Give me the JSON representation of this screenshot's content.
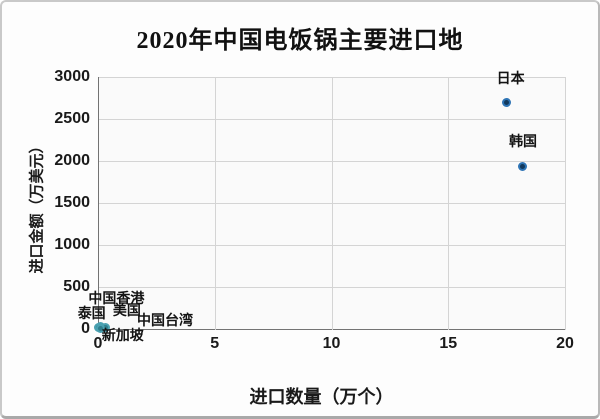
{
  "title": "2020年中国电饭锅主要进口地",
  "colors": {
    "page_bg": "#fdfdfd",
    "plot_bg": "#fafafa",
    "grid": "#d4d4d4",
    "axis": "#737373",
    "text": "#1a1a1a",
    "point_blue_fill": "#12395d",
    "point_blue_ring": "#2e74b5",
    "point_teal_fill": "#2e7d8c",
    "point_teal_ring": "#4aa0b0"
  },
  "chart_data": {
    "type": "scatter",
    "title": "2020年中国电饭锅主要进口地",
    "xlabel": "进口数量（万个）",
    "ylabel": "进口金额（万美元）",
    "xlim": [
      0,
      20
    ],
    "ylim": [
      0,
      3000
    ],
    "x_ticks": [
      0,
      5,
      10,
      15,
      20
    ],
    "y_ticks": [
      0,
      500,
      1000,
      1500,
      2000,
      2500,
      3000
    ],
    "grid": true,
    "legend_position": "none",
    "series": [
      {
        "name": "日本",
        "x": 17.5,
        "y": 2700,
        "fill": "#12395d",
        "ring": "#2e74b5",
        "label_dx": 4,
        "label_dy": -23
      },
      {
        "name": "韩国",
        "x": 18.2,
        "y": 1930,
        "fill": "#12395d",
        "ring": "#2e74b5",
        "label_dx": 0,
        "label_dy": -25
      },
      {
        "name": "中国香港",
        "x": 0.1,
        "y": 30,
        "fill": "#2e7d8c",
        "ring": "#4aa0b0",
        "label_dx": 16,
        "label_dy": -27
      },
      {
        "name": "美国",
        "x": 0.08,
        "y": 20,
        "fill": "#2e7d8c",
        "ring": "#4aa0b0",
        "label_dx": 27,
        "label_dy": -16
      },
      {
        "name": "泰国",
        "x": 0.03,
        "y": 12,
        "fill": "#2e7d8c",
        "ring": "#4aa0b0",
        "label_dx": -7,
        "label_dy": -14
      },
      {
        "name": "中国台湾",
        "x": 0.3,
        "y": 15,
        "fill": "#2e7d8c",
        "ring": "#4aa0b0",
        "label_dx": 60,
        "label_dy": -7
      },
      {
        "name": "新加坡",
        "x": 0.12,
        "y": 8,
        "fill": "#2e7d8c",
        "ring": "#4aa0b0",
        "label_dx": 22,
        "label_dy": 8
      }
    ]
  }
}
